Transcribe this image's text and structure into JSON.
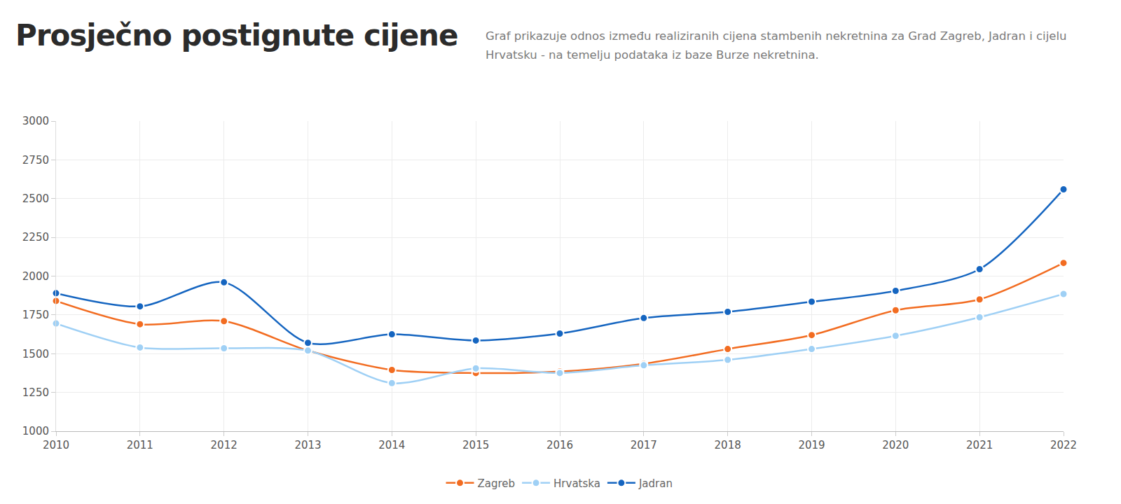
{
  "chart_data": {
    "type": "line",
    "title": "Prosječno postignute cijene",
    "subtitle": "Graf prikazuje odnos između realiziranih cijena stambenih nekretnina za Grad Zagreb, Jadran i cijelu Hrvatsku - na temelju podataka iz baze Burze nekretnina.",
    "x": [
      2010,
      2011,
      2012,
      2013,
      2014,
      2015,
      2016,
      2017,
      2018,
      2019,
      2020,
      2021,
      2022
    ],
    "series": [
      {
        "name": "Zagreb",
        "color": "#f26c21",
        "values": [
          1840,
          1690,
          1710,
          1520,
          1395,
          1375,
          1385,
          1435,
          1530,
          1620,
          1780,
          1850,
          2085
        ]
      },
      {
        "name": "Hrvatska",
        "color": "#9fd0f5",
        "values": [
          1695,
          1540,
          1535,
          1520,
          1310,
          1405,
          1375,
          1425,
          1460,
          1530,
          1615,
          1735,
          1885
        ]
      },
      {
        "name": "Jadran",
        "color": "#1565c0",
        "values": [
          1890,
          1805,
          1960,
          1570,
          1625,
          1585,
          1630,
          1730,
          1770,
          1835,
          1905,
          2045,
          2560
        ]
      }
    ],
    "xlim": [
      2010,
      2022
    ],
    "xticks": [
      2010,
      2011,
      2012,
      2013,
      2014,
      2015,
      2016,
      2017,
      2018,
      2019,
      2020,
      2021,
      2022
    ],
    "ylim": [
      1000,
      3000
    ],
    "yticks": [
      1000,
      1250,
      1500,
      1750,
      2000,
      2250,
      2500,
      2750,
      3000
    ],
    "grid": true,
    "legend": "bottom",
    "marker": "circle",
    "line_style": "solid"
  }
}
